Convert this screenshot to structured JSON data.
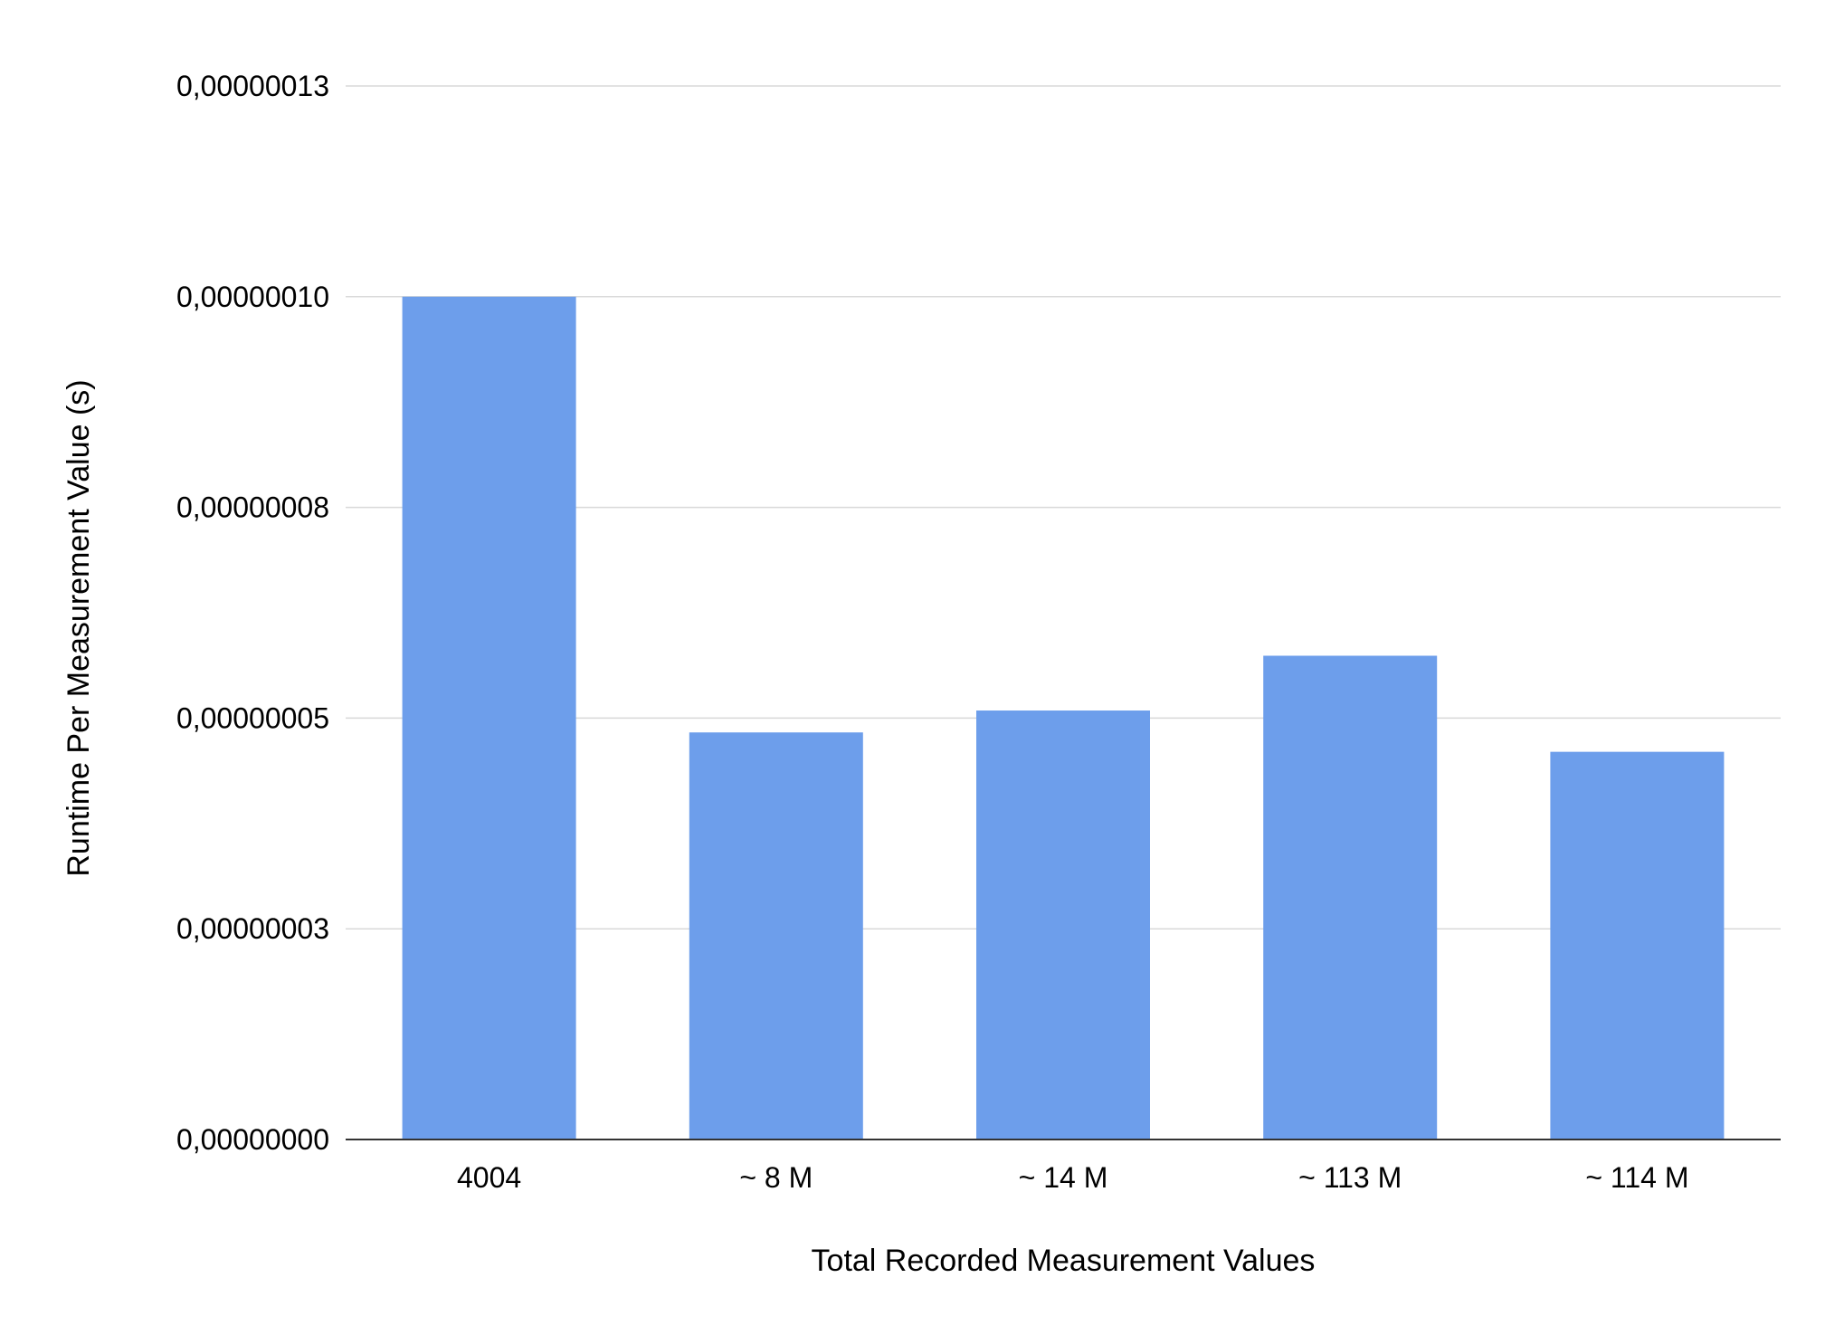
{
  "chart_data": {
    "type": "bar",
    "title": "",
    "xlabel": "Total Recorded Measurement Values",
    "ylabel": "Runtime Per Measurement Value (s)",
    "categories": [
      "4004",
      "~ 8 M",
      "~ 14 M",
      "~ 113 M",
      "~ 114 M"
    ],
    "series": [
      {
        "values": [
          1e-07,
          4.83e-08,
          5.09e-08,
          5.74e-08,
          4.6e-08
        ]
      }
    ],
    "ylim": [
      0,
      1.25e-07
    ],
    "yticks": [
      0,
      2.5e-08,
      5e-08,
      7.5e-08,
      1e-07,
      1.25e-07
    ],
    "ytick_labels": [
      "0,00000000",
      "0,00000003",
      "0,00000005",
      "0,00000008",
      "0,00000010",
      "0,00000013"
    ],
    "grid": true,
    "legend": "none",
    "colors": {
      "bar": "#6d9eeb",
      "grid": "#d9d9d9",
      "baseline": "#333333"
    }
  }
}
